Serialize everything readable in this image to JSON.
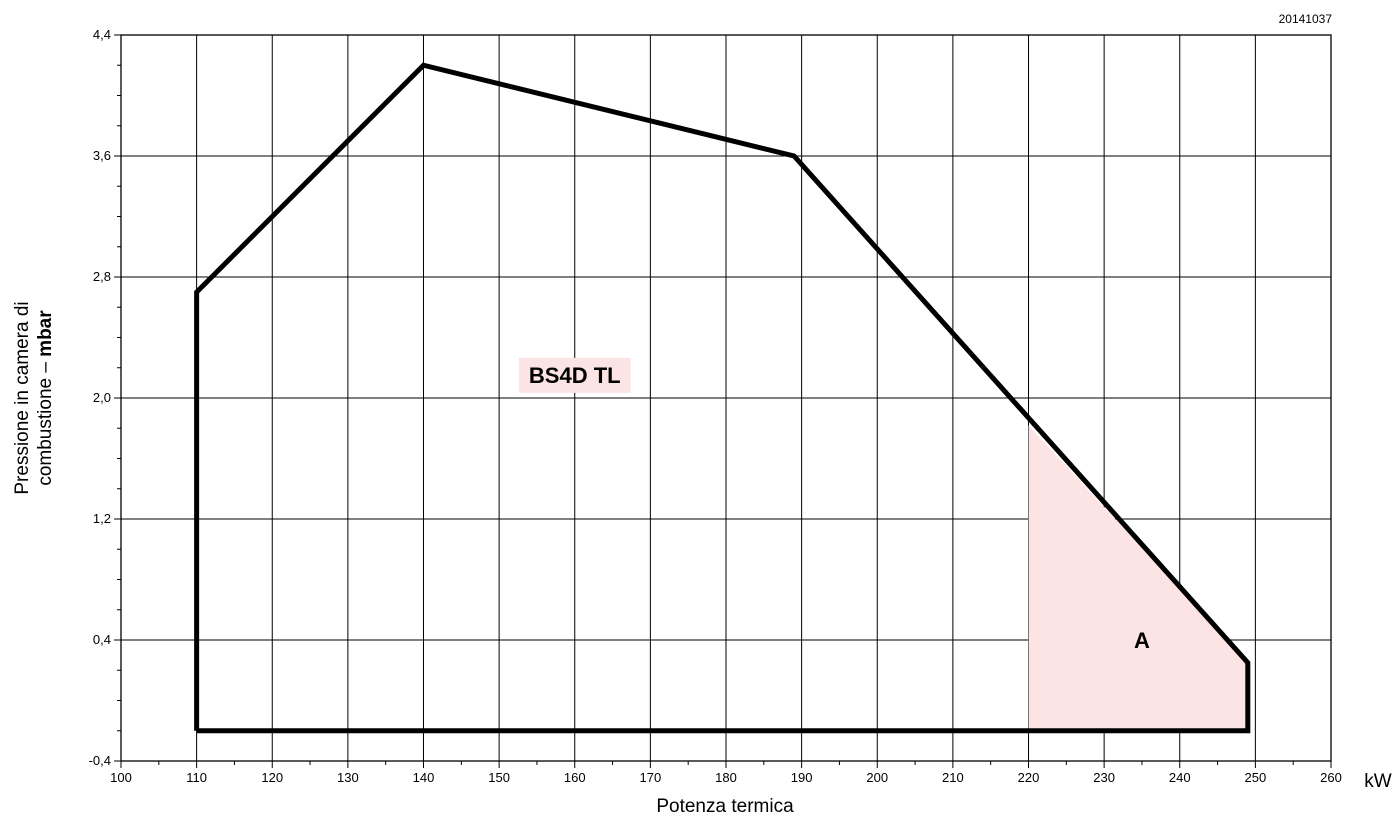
{
  "chart_data": {
    "type": "area",
    "drawing_code": "20141037",
    "xlabel": "Potenza termica",
    "xunit": "kW",
    "ylabel_line1": "Pressione in camera di",
    "ylabel_line2_prefix": "combustione – ",
    "ylabel_line2_unit": "mbar",
    "xlim": [
      100,
      260
    ],
    "ylim": [
      -0.4,
      4.4
    ],
    "x_ticks": [
      100,
      110,
      120,
      130,
      140,
      150,
      160,
      170,
      180,
      190,
      200,
      210,
      220,
      230,
      240,
      250,
      260
    ],
    "x_tick_labels": [
      "100",
      "110",
      "120",
      "130",
      "140",
      "150",
      "160",
      "170",
      "180",
      "190",
      "200",
      "210",
      "220",
      "230",
      "240",
      "250",
      "260"
    ],
    "y_ticks": [
      -0.4,
      0.4,
      1.2,
      2.0,
      2.8,
      3.6,
      4.4
    ],
    "y_tick_labels": [
      "-0,4",
      "0,4",
      "1,2",
      "2,0",
      "2,8",
      "3,6",
      "4,4"
    ],
    "grid": true,
    "series": [
      {
        "name": "BS4D TL",
        "x": [
          110,
          110,
          140,
          189,
          249,
          249,
          110
        ],
        "y": [
          -0.2,
          2.7,
          4.2,
          3.6,
          0.25,
          -0.2,
          -0.2
        ]
      }
    ],
    "regions": [
      {
        "label": "A",
        "color": "#fde4e4",
        "x": [
          220,
          220,
          249,
          249
        ],
        "y": [
          -0.2,
          1.82,
          0.25,
          -0.2
        ]
      }
    ],
    "annotations": [
      {
        "text": "BS4D TL",
        "x": 160,
        "y": 2.1,
        "background": "#fde4e4"
      },
      {
        "text": "A",
        "x": 235,
        "y": 0.4
      }
    ]
  }
}
